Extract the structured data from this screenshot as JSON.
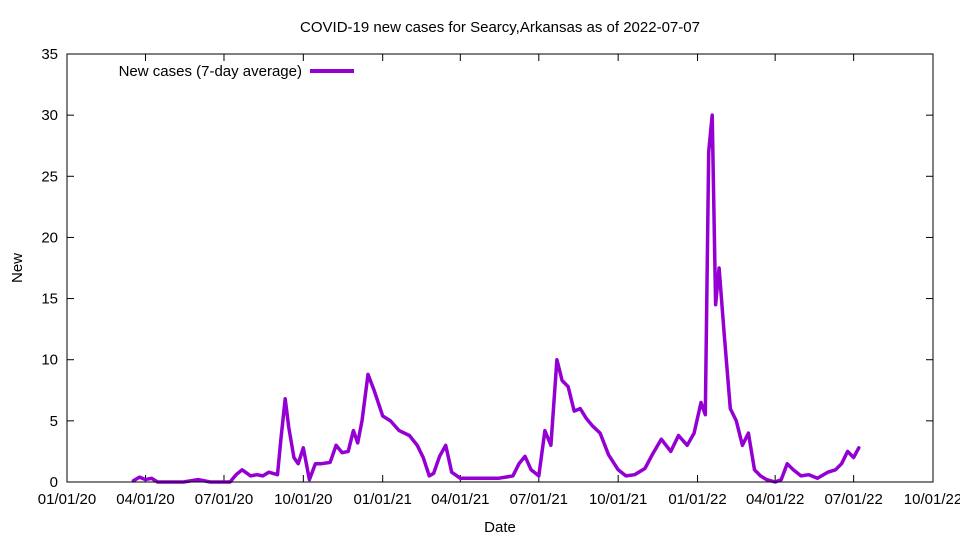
{
  "chart_data": {
    "type": "line",
    "title": "COVID-19 new cases for Searcy,Arkansas as of 2022-07-07",
    "xlabel": "Date",
    "ylabel": "New",
    "ylim": [
      0,
      35
    ],
    "yticks": [
      0,
      5,
      10,
      15,
      20,
      25,
      30,
      35
    ],
    "xlim": [
      "01/01/20",
      "10/01/22"
    ],
    "xtick_labels": [
      "01/01/20",
      "04/01/20",
      "07/01/20",
      "10/01/20",
      "01/01/21",
      "04/01/21",
      "07/01/21",
      "10/01/21",
      "01/01/22",
      "04/01/22",
      "07/01/22",
      "10/01/22"
    ],
    "grid": false,
    "legend": "top-left",
    "series": [
      {
        "name": "New cases (7-day average)",
        "color": "#9400d3",
        "x": [
          "03/18/20",
          "03/25/20",
          "04/01/20",
          "04/08/20",
          "04/15/20",
          "04/22/20",
          "05/01/20",
          "05/15/20",
          "06/01/20",
          "06/15/20",
          "07/01/20",
          "07/08/20",
          "07/15/20",
          "07/22/20",
          "08/01/20",
          "08/08/20",
          "08/15/20",
          "08/22/20",
          "09/01/20",
          "09/05/20",
          "09/10/20",
          "09/14/20",
          "09/20/20",
          "09/25/20",
          "10/01/20",
          "10/08/20",
          "10/15/20",
          "10/22/20",
          "11/01/20",
          "11/08/20",
          "11/15/20",
          "11/22/20",
          "11/28/20",
          "12/03/20",
          "12/08/20",
          "12/15/20",
          "12/22/20",
          "01/01/21",
          "01/10/21",
          "01/20/21",
          "02/01/21",
          "02/10/21",
          "02/17/21",
          "02/24/21",
          "03/01/21",
          "03/08/21",
          "03/15/21",
          "03/22/21",
          "04/01/21",
          "04/15/21",
          "05/01/21",
          "05/15/21",
          "06/01/21",
          "06/08/21",
          "06/15/21",
          "06/22/21",
          "07/01/21",
          "07/08/21",
          "07/15/21",
          "07/22/21",
          "07/28/21",
          "08/04/21",
          "08/11/21",
          "08/18/21",
          "08/25/21",
          "09/01/21",
          "09/10/21",
          "09/20/21",
          "10/01/21",
          "10/10/21",
          "10/20/21",
          "11/01/21",
          "11/10/21",
          "11/20/21",
          "12/01/21",
          "12/10/21",
          "12/20/21",
          "12/28/21",
          "01/05/22",
          "01/10/22",
          "01/14/22",
          "01/18/22",
          "01/22/22",
          "01/26/22",
          "02/01/22",
          "02/08/22",
          "02/15/22",
          "02/22/22",
          "03/01/22",
          "03/08/22",
          "03/15/22",
          "03/22/22",
          "04/01/22",
          "04/08/22",
          "04/15/22",
          "04/22/22",
          "05/01/22",
          "05/10/22",
          "05/20/22",
          "06/01/22",
          "06/10/22",
          "06/17/22",
          "06/24/22",
          "07/01/22",
          "07/07/22"
        ],
        "values": [
          0.1,
          0.4,
          0.2,
          0.3,
          0,
          0,
          0,
          0,
          0.2,
          0,
          0,
          0,
          0.6,
          1,
          0.5,
          0.6,
          0.5,
          0.8,
          0.6,
          3.5,
          6.8,
          4.5,
          2,
          1.5,
          2.8,
          0.2,
          1.5,
          1.5,
          1.6,
          3,
          2.4,
          2.5,
          4.2,
          3.2,
          5,
          8.8,
          7.5,
          5.4,
          5,
          4.2,
          3.8,
          3,
          2,
          0.5,
          0.7,
          2.1,
          3,
          0.8,
          0.3,
          0.3,
          0.3,
          0.3,
          0.5,
          1.5,
          2.1,
          1,
          0.5,
          4.2,
          3,
          10,
          8.3,
          7.8,
          5.8,
          6,
          5.2,
          4.6,
          4,
          2.2,
          1,
          0.5,
          0.6,
          1.1,
          2.3,
          3.5,
          2.5,
          3.8,
          3,
          4,
          6.5,
          5.5,
          27,
          30,
          14.5,
          17.5,
          12,
          6,
          5,
          3,
          4,
          1,
          0.5,
          0.2,
          0,
          0.2,
          1.5,
          1,
          0.5,
          0.6,
          0.3,
          0.8,
          1,
          1.5,
          2.5,
          2,
          2.8
        ]
      }
    ]
  }
}
